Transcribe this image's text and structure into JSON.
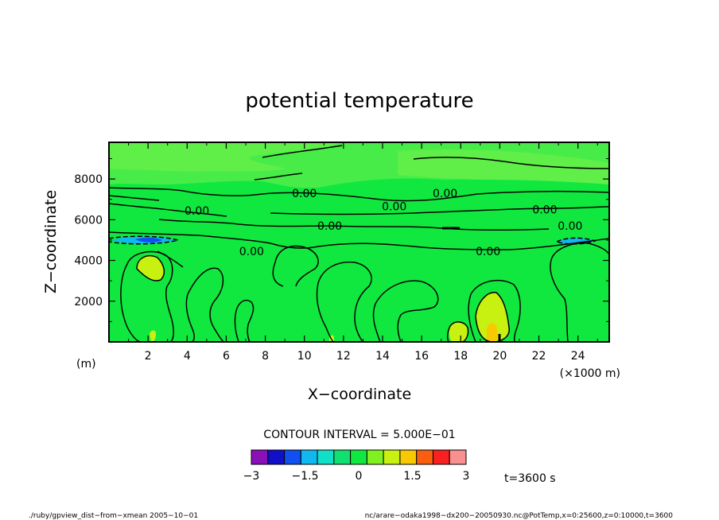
{
  "chart_data": {
    "type": "contour",
    "title": "potential temperature",
    "xlabel": "X−coordinate",
    "ylabel": "Z−coordinate",
    "x_unit": "(×1000 m)",
    "y_unit": "(m)",
    "xlim": [
      0,
      25.6
    ],
    "ylim": [
      0,
      9800
    ],
    "x_ticks": [
      2,
      4,
      6,
      8,
      10,
      12,
      14,
      16,
      18,
      20,
      22,
      24
    ],
    "y_ticks": [
      2000,
      4000,
      6000,
      8000
    ],
    "contour_interval_text": "CONTOUR INTERVAL = 5.000E−01",
    "colorbar": {
      "levels": [
        -3,
        -2.5,
        -2,
        -1.5,
        -1,
        -0.5,
        0,
        0.5,
        1,
        1.5,
        2,
        2.5,
        3
      ],
      "tick_labels": [
        "−3",
        "−1.5",
        "0",
        "1.5",
        "3"
      ],
      "tick_values": [
        -3,
        -1.5,
        0,
        1.5,
        3
      ],
      "colors": [
        "#8a10b8",
        "#1010c8",
        "#1050f0",
        "#10b8f0",
        "#10e0c8",
        "#10e070",
        "#10e840",
        "#80f020",
        "#c8f010",
        "#f8c800",
        "#f86010",
        "#f82020",
        "#f89090"
      ]
    },
    "contour_labels": [
      {
        "text": "0.00",
        "x": 10.0,
        "y": 7300
      },
      {
        "text": "0.00",
        "x": 17.2,
        "y": 7300
      },
      {
        "text": "0.00",
        "x": 4.5,
        "y": 6450
      },
      {
        "text": "0.00",
        "x": 14.6,
        "y": 6650
      },
      {
        "text": "0.00",
        "x": 22.3,
        "y": 6500
      },
      {
        "text": "0.00",
        "x": 11.3,
        "y": 5700
      },
      {
        "text": "0.00",
        "x": 23.6,
        "y": 5700
      },
      {
        "text": "0.00",
        "x": 7.3,
        "y": 4450
      },
      {
        "text": "0.00",
        "x": 19.4,
        "y": 4450
      }
    ],
    "time_label": "t=3600 s",
    "colors": {
      "background": "#10e840",
      "upper_band": "#78ec48",
      "positive": "#c8f010",
      "warm": "#f8c800",
      "negative": "#10b8f0",
      "strong_negative": "#1050f0"
    }
  },
  "footer": {
    "left": "./ruby/gpview_dist−from−xmean   2005−10−01",
    "right": "nc/arare−odaka1998−dx200−20050930.nc@PotTemp,x=0:25600,z=0:10000,t=3600"
  }
}
